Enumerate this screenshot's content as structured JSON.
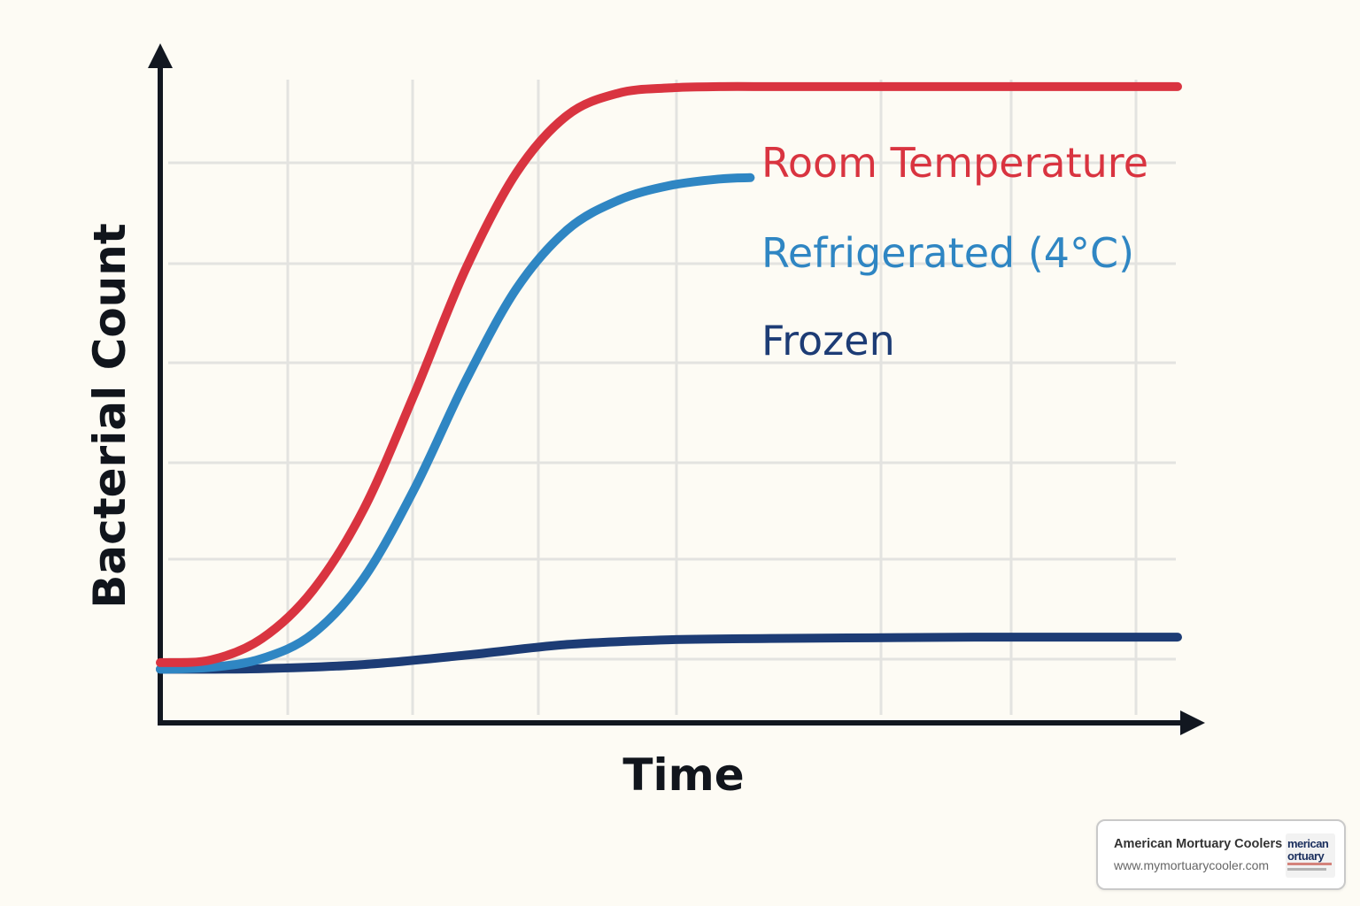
{
  "chart_data": {
    "type": "line",
    "xlabel": "Time",
    "ylabel": "Bacterial Count",
    "grid": true,
    "legend": "direct labels right of curves",
    "x_ticks_shown": false,
    "y_ticks_shown": false,
    "xlim": [
      0,
      100
    ],
    "ylim": [
      0,
      100
    ],
    "series": [
      {
        "name": "Room Temperature",
        "color": "#d93440",
        "x": [
          0,
          5,
          10,
          15,
          20,
          25,
          30,
          35,
          40,
          45,
          50,
          55,
          60,
          65,
          70,
          80,
          90,
          100
        ],
        "y": [
          9.0,
          9.4,
          12.6,
          19.8,
          31.9,
          49.2,
          67.7,
          82.1,
          90.7,
          94.0,
          94.8,
          95.0,
          95.0,
          95.0,
          95.0,
          95.0,
          95.0,
          95.0
        ]
      },
      {
        "name": "Refrigerated (4°C)",
        "color": "#2f86c3",
        "x": [
          0,
          5,
          10,
          15,
          20,
          25,
          30,
          35,
          40,
          45,
          50,
          55,
          58
        ],
        "y": [
          8.0,
          8.3,
          9.6,
          13.3,
          21.6,
          35.0,
          51.0,
          64.8,
          73.6,
          78.0,
          80.2,
          81.2,
          81.4
        ]
      },
      {
        "name": "Frozen",
        "color": "#1d3c75",
        "x": [
          0,
          10,
          20,
          30,
          40,
          50,
          60,
          70,
          80,
          90,
          100
        ],
        "y": [
          8.0,
          8.1,
          8.7,
          10.1,
          11.7,
          12.4,
          12.6,
          12.7,
          12.8,
          12.8,
          12.8
        ]
      }
    ]
  },
  "watermark": {
    "company": "American Mortuary Coolers",
    "url": "www.mymortuarycooler.com",
    "logo_text_line1": "merican",
    "logo_text_line2": "ortuary"
  }
}
